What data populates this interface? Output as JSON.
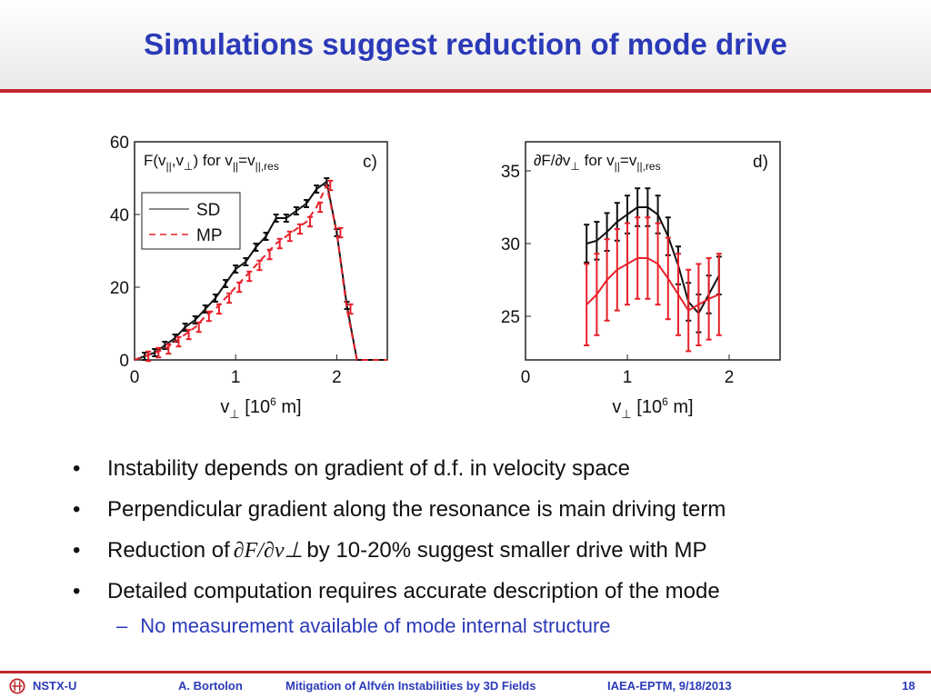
{
  "slide": {
    "title": "Simulations suggest reduction of mode drive",
    "bullets": [
      "Instability depends on gradient of d.f. in velocity space",
      "Perpendicular gradient along the resonance is main driving term",
      "Detailed computation requires accurate description of the mode"
    ],
    "bullet_reduction_pre": "Reduction of",
    "bullet_reduction_math": "∂F/∂v⊥",
    "bullet_reduction_post": "by 10-20% suggest smaller drive with MP",
    "sub_bullet": "No measurement available of mode internal structure",
    "bullet_mark": "•",
    "sub_mark": "–"
  },
  "footer": {
    "left": "NSTX-U",
    "author": "A. Bortolon",
    "talk": "Mitigation of Alfvén Instabilities by 3D Fields",
    "meeting": "IAEA-EPTM, 9/18/2013",
    "page": "18"
  },
  "colors": {
    "title": "#2b3ab8",
    "accent": "#c0272d",
    "sd": "#111111",
    "mp": "#e8202a"
  },
  "chart_data": [
    {
      "type": "line",
      "panel": "c)",
      "title": "F(v||,v⊥)  for v||=v||,res",
      "xlabel": "v⊥ [10^6 m]",
      "xlim": [
        0,
        2.5
      ],
      "ylim": [
        0,
        60
      ],
      "xticks": [
        "0",
        "1",
        "2"
      ],
      "yticks": [
        "0",
        "20",
        "40",
        "60"
      ],
      "legend": {
        "placement": "top-left",
        "entries": [
          "SD",
          "MP"
        ]
      },
      "x": [
        0,
        0.1,
        0.2,
        0.3,
        0.4,
        0.5,
        0.6,
        0.7,
        0.8,
        0.9,
        1.0,
        1.1,
        1.2,
        1.3,
        1.4,
        1.5,
        1.6,
        1.7,
        1.8,
        1.9,
        2.0,
        2.1,
        2.2,
        2.3,
        2.5
      ],
      "series": [
        {
          "name": "SD",
          "style": "solid",
          "values": [
            0,
            1,
            2,
            4,
            6,
            9,
            11,
            14,
            17,
            21,
            25,
            27,
            31,
            34,
            39,
            39,
            41,
            43,
            47,
            49,
            35,
            15,
            0,
            0,
            0
          ],
          "err": 1
        },
        {
          "name": "MP",
          "style": "dashed",
          "values": [
            0,
            1,
            2,
            3,
            5,
            7,
            9,
            12,
            14,
            17,
            20,
            23,
            26,
            29,
            32,
            34,
            36,
            38,
            42,
            48,
            35,
            14,
            0,
            0,
            0
          ],
          "err": 1.3
        }
      ]
    },
    {
      "type": "line",
      "panel": "d)",
      "title": "∂F/∂v⊥  for v||=v||,res",
      "xlabel": "v⊥ [10^6 m]",
      "xlim": [
        0,
        2.5
      ],
      "ylim": [
        22,
        37
      ],
      "xticks": [
        "0",
        "1",
        "2"
      ],
      "yticks": [
        "25",
        "30",
        "35"
      ],
      "x": [
        0.6,
        0.7,
        0.8,
        0.9,
        1.0,
        1.1,
        1.2,
        1.3,
        1.4,
        1.5,
        1.6,
        1.7,
        1.8,
        1.9
      ],
      "series": [
        {
          "name": "SD",
          "style": "solid",
          "values": [
            30,
            30.2,
            30.8,
            31.5,
            32,
            32.5,
            32.5,
            32,
            30.5,
            28.5,
            26,
            25.2,
            26.5,
            27.8
          ],
          "err": 1.3
        },
        {
          "name": "MP",
          "style": "solid",
          "values": [
            25.8,
            26.5,
            27.5,
            28.2,
            28.6,
            29,
            29,
            28.6,
            27.6,
            26.5,
            25.4,
            25.8,
            26.2,
            26.5
          ],
          "err": 2.8
        }
      ]
    }
  ]
}
